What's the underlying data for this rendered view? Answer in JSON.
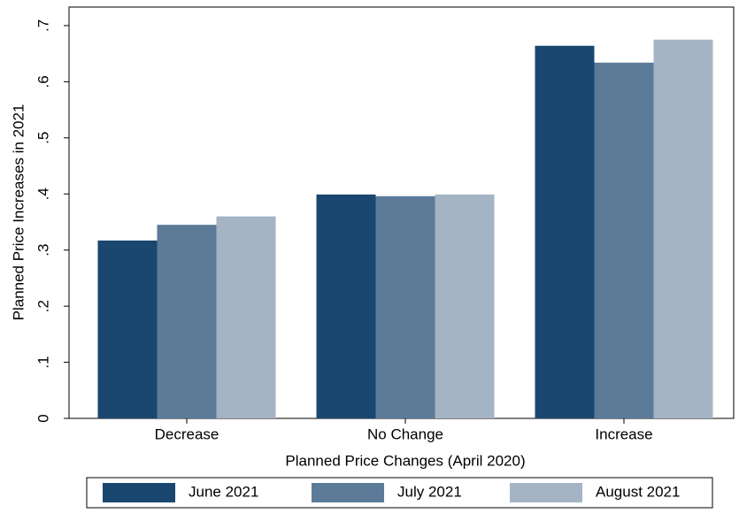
{
  "chart_data": {
    "type": "bar",
    "x_label": "Planned Price Changes (April 2020)",
    "y_label": "Planned Price Increases in 2021",
    "categories": [
      "Decrease",
      "No Change",
      "Increase"
    ],
    "series": [
      {
        "name": "June 2021",
        "color": "#1a476f",
        "values": [
          0.317,
          0.399,
          0.664
        ]
      },
      {
        "name": "July 2021",
        "color": "#5b7b99",
        "values": [
          0.345,
          0.396,
          0.634
        ]
      },
      {
        "name": "August 2021",
        "color": "#a5b4c4",
        "values": [
          0.36,
          0.399,
          0.675
        ]
      }
    ],
    "ylim": [
      0,
      0.733
    ],
    "yticks": [
      0,
      {
        "value": 0.1,
        "label": ".1"
      },
      {
        "value": 0.2,
        "label": ".2"
      },
      {
        "value": 0.3,
        "label": ".3"
      },
      {
        "value": 0.4,
        "label": ".4"
      },
      {
        "value": 0.5,
        "label": ".5"
      },
      {
        "value": 0.6,
        "label": ".6"
      },
      {
        "value": 0.7,
        "label": ".7"
      }
    ],
    "grid": false,
    "legend": "bottom"
  }
}
